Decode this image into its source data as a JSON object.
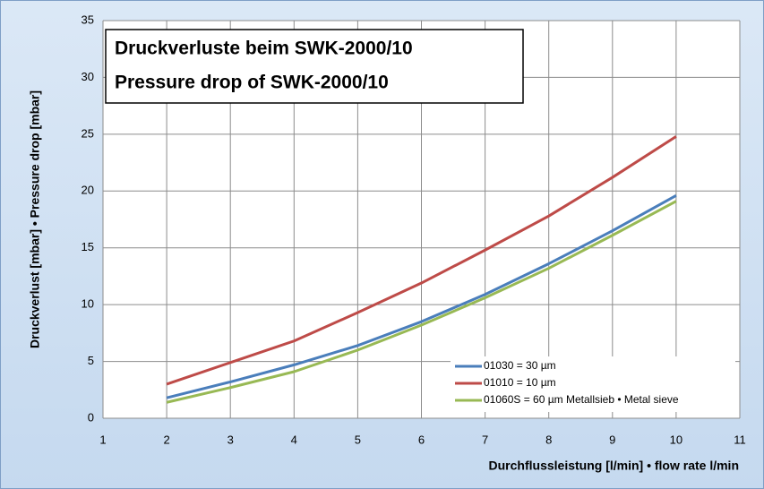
{
  "chart_data": {
    "type": "line",
    "title": [
      "Druckverluste beim SWK-2000/10",
      "Pressure drop of SWK-2000/10"
    ],
    "x_label": "Durchflussleistung [l/min] •   flow rate l/min",
    "y_label": "Druckverlust [mbar] • Pressure drop [mbar]",
    "x": [
      2,
      3,
      4,
      5,
      6,
      7,
      8,
      9,
      10
    ],
    "series": [
      {
        "name": "01030   = 30 µm",
        "color": "#4a7ebb",
        "values": [
          1.8,
          3.2,
          4.7,
          6.4,
          8.5,
          10.9,
          13.6,
          16.5,
          19.6
        ]
      },
      {
        "name": "01010   = 10 µm",
        "color": "#be4b48",
        "values": [
          3.0,
          4.9,
          6.8,
          9.3,
          11.9,
          14.8,
          17.8,
          21.2,
          24.8
        ]
      },
      {
        "name": "01060S = 60 µm Metallsieb • Metal sieve",
        "color": "#98b954",
        "values": [
          1.4,
          2.7,
          4.1,
          6.0,
          8.2,
          10.6,
          13.2,
          16.1,
          19.1
        ]
      }
    ],
    "xlim": [
      1,
      11
    ],
    "xticks": [
      1,
      2,
      3,
      4,
      5,
      6,
      7,
      8,
      9,
      10,
      11
    ],
    "ylim": [
      0,
      35
    ],
    "yticks": [
      0,
      5,
      10,
      15,
      20,
      25,
      30,
      35
    ],
    "grid": true,
    "legend": "lower right"
  }
}
